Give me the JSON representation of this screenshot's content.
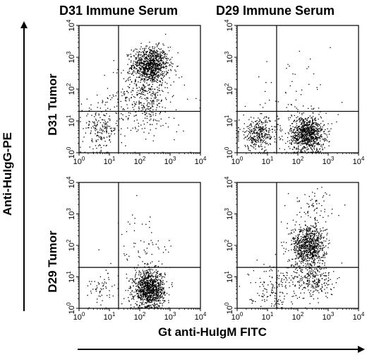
{
  "figure": {
    "column_titles": [
      "D31 Immune Serum",
      "D29 Immune Serum"
    ],
    "row_titles": [
      "D31 Tumor",
      "D29 Tumor"
    ],
    "y_axis_title": "Anti-HuIgG-PE",
    "x_axis_title": "Gt anti-HuIgM FITC"
  },
  "chart_data": [
    {
      "type": "scatter",
      "panel": "D31 Tumor / D31 Immune Serum",
      "x_scale": "log",
      "y_scale": "log",
      "xlim": [
        1,
        10000
      ],
      "ylim": [
        1,
        10000
      ],
      "x_ticks": [
        "10^0",
        "10^1",
        "10^2",
        "10^3",
        "10^4"
      ],
      "y_ticks": [
        "10^0",
        "10^1",
        "10^2",
        "10^3",
        "10^4"
      ],
      "quadrant_gates": {
        "x": 20,
        "y": 20
      },
      "populations": [
        {
          "center": [
            220,
            600
          ],
          "spread_log10": [
            0.3,
            0.28
          ],
          "count": 900,
          "note": "double-positive main cluster"
        },
        {
          "center": [
            150,
            80
          ],
          "spread_log10": [
            0.4,
            0.55
          ],
          "count": 350
        },
        {
          "center": [
            5,
            6
          ],
          "spread_log10": [
            0.3,
            0.35
          ],
          "count": 180
        },
        {
          "center": [
            100,
            30
          ],
          "spread_log10": [
            0.8,
            0.7
          ],
          "count": 120
        }
      ]
    },
    {
      "type": "scatter",
      "panel": "D31 Tumor / D29 Immune Serum",
      "x_scale": "log",
      "y_scale": "log",
      "xlim": [
        1,
        10000
      ],
      "ylim": [
        1,
        10000
      ],
      "x_ticks": [
        "10^0",
        "10^1",
        "10^2",
        "10^3",
        "10^4"
      ],
      "y_ticks": [
        "10^0",
        "10^1",
        "10^2",
        "10^3",
        "10^4"
      ],
      "quadrant_gates": {
        "x": 20,
        "y": 20
      },
      "populations": [
        {
          "center": [
            200,
            4
          ],
          "spread_log10": [
            0.28,
            0.28
          ],
          "count": 900,
          "note": "IgM-positive, IgG-negative cluster"
        },
        {
          "center": [
            5,
            4
          ],
          "spread_log10": [
            0.32,
            0.25
          ],
          "count": 350
        },
        {
          "center": [
            60,
            30
          ],
          "spread_log10": [
            0.7,
            0.65
          ],
          "count": 80
        }
      ]
    },
    {
      "type": "scatter",
      "panel": "D29 Tumor / D31 Immune Serum",
      "x_scale": "log",
      "y_scale": "log",
      "xlim": [
        1,
        10000
      ],
      "ylim": [
        1,
        10000
      ],
      "x_ticks": [
        "10^0",
        "10^1",
        "10^2",
        "10^3",
        "10^4"
      ],
      "y_ticks": [
        "10^0",
        "10^1",
        "10^2",
        "10^3",
        "10^4"
      ],
      "quadrant_gates": {
        "x": 20,
        "y": 20
      },
      "populations": [
        {
          "center": [
            200,
            4
          ],
          "spread_log10": [
            0.25,
            0.3
          ],
          "count": 1050,
          "note": "IgM-positive, IgG-negative cluster"
        },
        {
          "center": [
            5,
            4
          ],
          "spread_log10": [
            0.3,
            0.25
          ],
          "count": 60
        },
        {
          "center": [
            150,
            50
          ],
          "spread_log10": [
            0.5,
            0.7
          ],
          "count": 90
        }
      ]
    },
    {
      "type": "scatter",
      "panel": "D29 Tumor / D29 Immune Serum",
      "x_scale": "log",
      "y_scale": "log",
      "xlim": [
        1,
        10000
      ],
      "ylim": [
        1,
        10000
      ],
      "x_ticks": [
        "10^0",
        "10^1",
        "10^2",
        "10^3",
        "10^4"
      ],
      "y_ticks": [
        "10^0",
        "10^1",
        "10^2",
        "10^3",
        "10^4"
      ],
      "quadrant_gates": {
        "x": 20,
        "y": 20
      },
      "populations": [
        {
          "center": [
            220,
            100
          ],
          "spread_log10": [
            0.28,
            0.35
          ],
          "count": 850,
          "note": "double-positive main cluster"
        },
        {
          "center": [
            300,
            8
          ],
          "spread_log10": [
            0.35,
            0.3
          ],
          "count": 250
        },
        {
          "center": [
            15,
            5
          ],
          "spread_log10": [
            0.4,
            0.35
          ],
          "count": 150
        },
        {
          "center": [
            300,
            2000
          ],
          "spread_log10": [
            0.4,
            0.25
          ],
          "count": 60
        }
      ]
    }
  ]
}
